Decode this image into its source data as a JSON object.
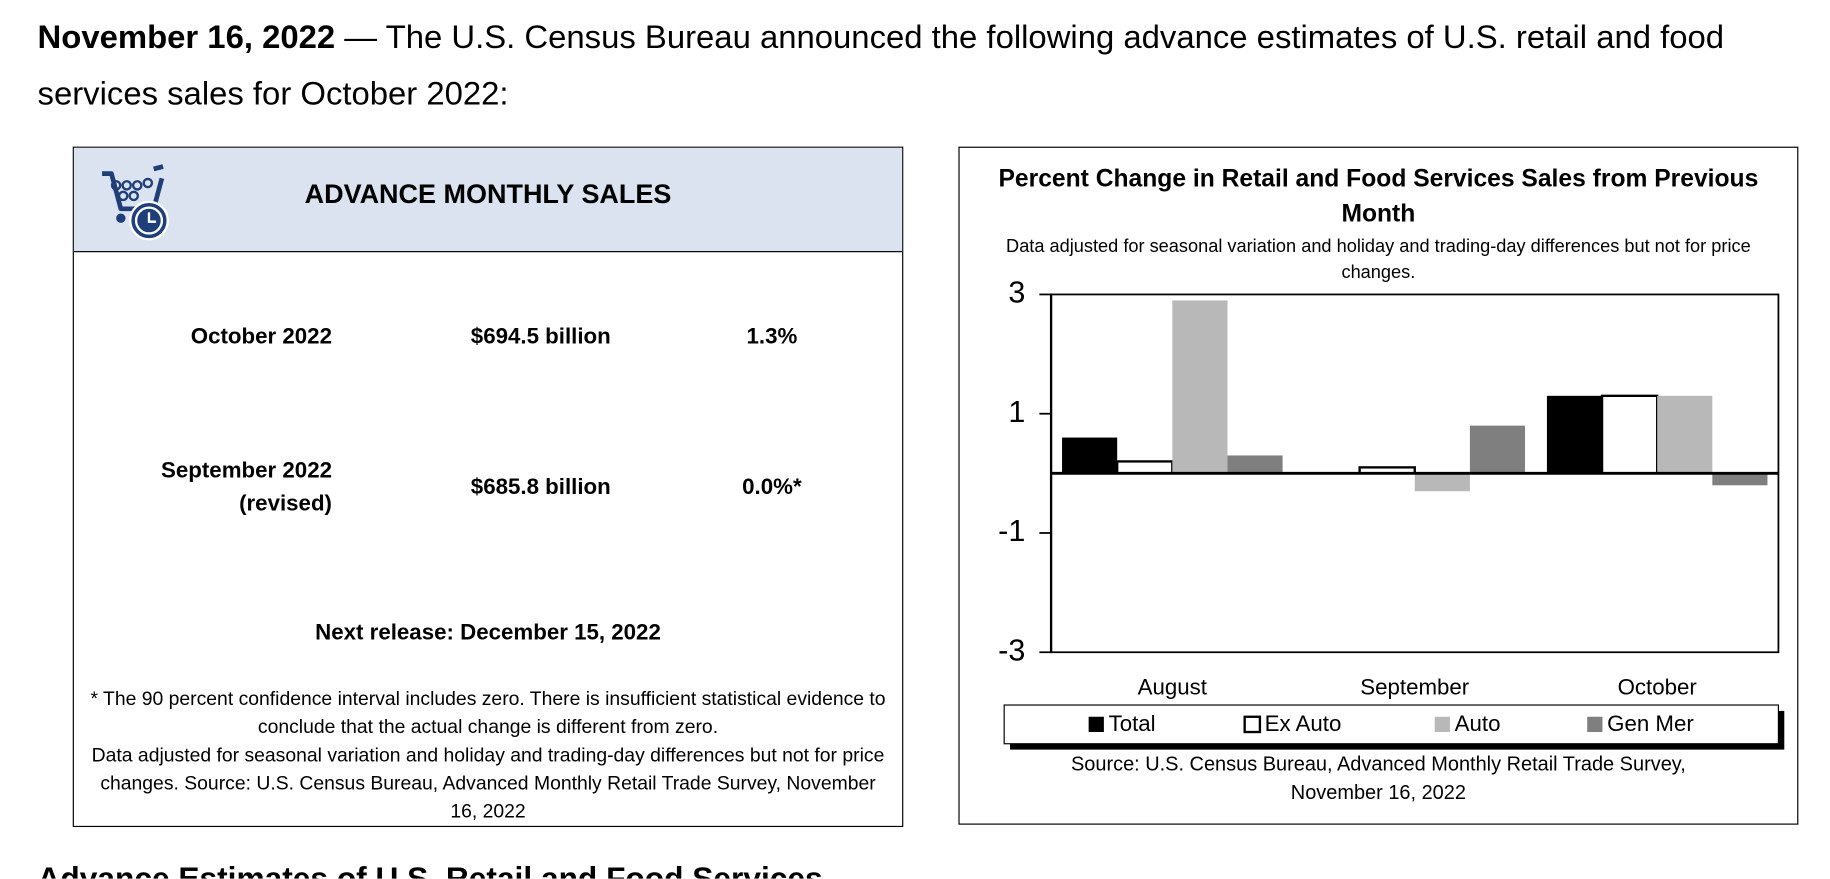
{
  "intro": {
    "date": "November 16, 2022",
    "text": "— The U.S. Census Bureau announced the following advance estimates of U.S. retail and food services sales for October 2022:"
  },
  "panel": {
    "title": "ADVANCE MONTHLY SALES",
    "rows": [
      {
        "label": "October 2022",
        "value": "$694.5 billion",
        "change": "1.3%"
      },
      {
        "label": "September 2022",
        "note": "(revised)",
        "value": "$685.8 billion",
        "change": "0.0%*"
      }
    ],
    "next_release": "Next release: December 15, 2022",
    "footnotes": [
      "* The 90 percent confidence interval includes zero. There is insufficient statistical evidence to conclude that the actual change is different from zero.",
      "Data adjusted for seasonal variation and holiday and trading-day differences but not for price changes. Source: U.S. Census Bureau, Advanced Monthly Retail Trade Survey, November 16, 2022"
    ]
  },
  "chart_data": {
    "type": "bar",
    "title": "Percent Change in Retail and Food Services Sales from Previous Month",
    "subtitle": "Data adjusted for seasonal variation and holiday and trading-day differences but not for price changes.",
    "categories": [
      "August",
      "September",
      "October"
    ],
    "series": [
      {
        "name": "Total",
        "color": "#000000",
        "values": [
          0.6,
          0,
          1.3
        ]
      },
      {
        "name": "Ex Auto",
        "color": "#ffffff",
        "values": [
          0.2,
          0.1,
          1.3
        ]
      },
      {
        "name": "Auto",
        "color": "#b8b8b8",
        "values": [
          2.9,
          -0.3,
          1.3
        ]
      },
      {
        "name": "Gen Mer",
        "color": "#7f7f7f",
        "values": [
          0.3,
          0.8,
          -0.2
        ]
      }
    ],
    "ylim": [
      -3,
      3
    ],
    "yticks": [
      -3,
      -1,
      1,
      3
    ],
    "legend": "bottom",
    "source": "Source: U.S. Census Bureau, Advanced Monthly Retail Trade Survey, November 16, 2022"
  },
  "next_heading": "Advance Estimates of U.S. Retail and Food Services"
}
